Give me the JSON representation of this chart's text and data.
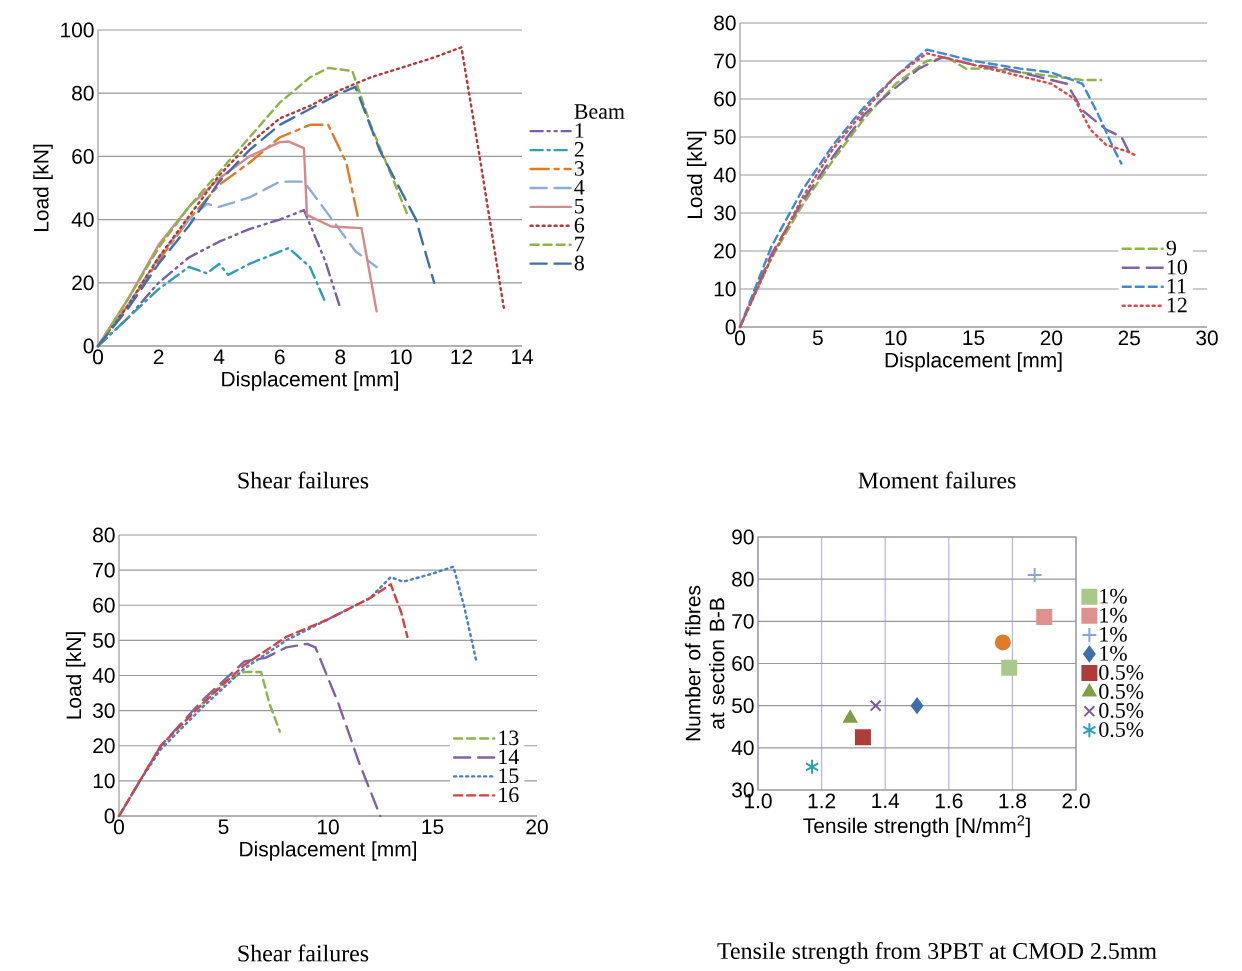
{
  "chart_data": [
    {
      "type": "line",
      "title": "Shear failures",
      "xlabel": "Displacement [mm]",
      "ylabel": "Load [kN]",
      "xlim": [
        0,
        14
      ],
      "ylim": [
        0,
        100
      ],
      "xticks": [
        0,
        2,
        4,
        6,
        8,
        10,
        12,
        14
      ],
      "yticks": [
        0,
        20,
        40,
        60,
        80,
        100
      ],
      "grid": "y",
      "legend": "right",
      "legend_title": "Beam",
      "series": [
        {
          "name": "1",
          "color": "#7b5ea7",
          "line_style": "dash-dot-dot",
          "x": [
            0,
            1,
            2,
            3,
            4,
            5,
            6,
            6.8,
            7.5,
            8
          ],
          "values": [
            0,
            9,
            20,
            28,
            33,
            37,
            40,
            43,
            27,
            12
          ]
        },
        {
          "name": "2",
          "color": "#2e9fb4",
          "line_style": "dash-dot",
          "x": [
            0,
            1,
            2,
            3,
            3.6,
            4,
            4.3,
            5,
            6.3,
            7,
            7.5
          ],
          "values": [
            0,
            9,
            18,
            25,
            23,
            26,
            22.5,
            26,
            31,
            25,
            14
          ]
        },
        {
          "name": "3",
          "color": "#e07b2a",
          "line_style": "long-dash-dot",
          "x": [
            0,
            1,
            2,
            3,
            4,
            5,
            6,
            7,
            7.6,
            8.2,
            8.6
          ],
          "values": [
            0,
            13,
            27,
            40,
            51,
            58,
            66,
            70,
            70,
            58,
            40
          ]
        },
        {
          "name": "4",
          "color": "#8eaad6",
          "line_style": "long-dash",
          "x": [
            0,
            1,
            2,
            3,
            3.6,
            4,
            5,
            6,
            6.8,
            7.5,
            8.5,
            9.2
          ],
          "values": [
            0,
            13,
            28,
            40,
            45,
            44,
            47,
            52,
            52,
            43,
            30,
            25
          ]
        },
        {
          "name": "5",
          "color": "#d48a8a",
          "line_style": "solid",
          "x": [
            0,
            1,
            2,
            3,
            4,
            5,
            6,
            6.3,
            6.8,
            6.9,
            7.7,
            8.7,
            9.2
          ],
          "values": [
            0,
            15,
            32,
            44,
            53,
            60,
            64.5,
            64.7,
            62.6,
            41.5,
            37.8,
            37.3,
            11
          ]
        },
        {
          "name": "6",
          "color": "#b8383b",
          "line_style": "dotted",
          "x": [
            0,
            1,
            2,
            3,
            4,
            5,
            6,
            7,
            8,
            9,
            10,
            11,
            12,
            12.6,
            13.4
          ],
          "values": [
            0,
            13,
            28,
            41,
            54,
            64,
            72,
            76,
            81,
            85,
            88,
            91,
            94.5,
            60,
            12
          ]
        },
        {
          "name": "7",
          "color": "#8db447",
          "line_style": "dashed",
          "x": [
            0,
            1,
            2,
            3,
            4,
            5,
            6,
            7,
            7.6,
            8.4,
            9,
            10.2
          ],
          "values": [
            0,
            15,
            31,
            44,
            55,
            66,
            77,
            85,
            88,
            87,
            70,
            42
          ]
        },
        {
          "name": "8",
          "color": "#3f6fa8",
          "line_style": "long-dash",
          "x": [
            0,
            1,
            2,
            3,
            4,
            5,
            6,
            7,
            8,
            8.5,
            9.3,
            10.5,
            11.1
          ],
          "values": [
            0,
            12,
            26,
            38,
            52,
            62,
            70,
            75,
            80,
            82,
            62,
            40,
            20
          ]
        }
      ]
    },
    {
      "type": "line",
      "title": "Moment failures",
      "xlabel": "Displacement [mm]",
      "ylabel": "Load [kN]",
      "xlim": [
        0,
        30
      ],
      "ylim": [
        0,
        80
      ],
      "xticks": [
        0,
        5,
        10,
        15,
        20,
        25,
        30
      ],
      "yticks": [
        0,
        10,
        20,
        30,
        40,
        50,
        60,
        70,
        80
      ],
      "grid": "y",
      "legend": "bottom right",
      "series": [
        {
          "name": "9",
          "color": "#8db447",
          "line_style": "dashed",
          "x": [
            0,
            2,
            4,
            6,
            8,
            10,
            12,
            13.3,
            14.5,
            16,
            18,
            20,
            22,
            23.2
          ],
          "values": [
            0,
            18,
            32,
            44,
            55,
            64,
            70,
            71,
            68,
            68,
            67,
            66,
            65,
            65
          ]
        },
        {
          "name": "10",
          "color": "#8064a2",
          "line_style": "long-dash",
          "x": [
            0,
            2,
            4,
            6,
            8,
            10,
            11.5,
            13,
            15,
            17,
            19,
            21,
            22,
            23.5,
            24.5,
            25
          ],
          "values": [
            0,
            19,
            33,
            45,
            56,
            63,
            68,
            71,
            69,
            68,
            66,
            64,
            57,
            52,
            50,
            46
          ]
        },
        {
          "name": "11",
          "color": "#3d8ad6",
          "line_style": "dashed",
          "x": [
            0,
            2,
            4,
            6,
            8,
            10,
            12,
            13,
            15,
            18,
            20,
            22,
            23,
            24,
            24.5
          ],
          "values": [
            0,
            21,
            36,
            48,
            58,
            66,
            73,
            72,
            70,
            68,
            67,
            64,
            56,
            47,
            43
          ]
        },
        {
          "name": "12",
          "color": "#e04848",
          "line_style": "dotted",
          "x": [
            0,
            2,
            4,
            6,
            8,
            10,
            12,
            14,
            16,
            18,
            20,
            21.5,
            22.5,
            23.5,
            25,
            25.5
          ],
          "values": [
            0,
            18,
            34,
            47,
            57,
            66,
            72,
            70,
            68,
            66,
            64,
            60,
            52,
            48,
            46,
            45
          ]
        }
      ]
    },
    {
      "type": "line",
      "title": "Shear failures",
      "xlabel": "Displacement [mm]",
      "ylabel": "Load [kN]",
      "xlim": [
        0,
        20
      ],
      "ylim": [
        0,
        80
      ],
      "xticks": [
        0,
        5,
        10,
        15,
        20
      ],
      "yticks": [
        0,
        10,
        20,
        30,
        40,
        50,
        60,
        70,
        80
      ],
      "grid": "y",
      "legend": "bottom right",
      "series": [
        {
          "name": "13",
          "color": "#8db447",
          "line_style": "dashed",
          "x": [
            4,
            5,
            6,
            6.8,
            7.2,
            7.7
          ],
          "values": [
            32,
            38,
            41,
            41,
            32,
            24
          ]
        },
        {
          "name": "14",
          "color": "#8064a2",
          "line_style": "long-dash",
          "x": [
            0,
            2,
            4,
            6,
            7,
            8,
            9,
            9.4,
            10.5,
            11.5,
            12.5
          ],
          "values": [
            0,
            20,
            33,
            44,
            45,
            48,
            49,
            48,
            32,
            15,
            0
          ]
        },
        {
          "name": "15",
          "color": "#4a7fc1",
          "line_style": "dotted",
          "x": [
            0,
            1,
            2,
            4,
            6,
            8,
            10,
            12,
            13,
            13.6,
            15,
            16,
            16.5,
            17.1
          ],
          "values": [
            0,
            10,
            19,
            31,
            42,
            50,
            56,
            62,
            68,
            66.7,
            69,
            71,
            60,
            44
          ]
        },
        {
          "name": "16",
          "color": "#d84040",
          "line_style": "dashed",
          "x": [
            0,
            1,
            2,
            4,
            6,
            8,
            10,
            12,
            13,
            13.5,
            13.8
          ],
          "values": [
            0,
            10,
            20,
            32,
            43,
            51,
            56,
            62,
            66,
            58,
            51
          ]
        }
      ]
    },
    {
      "type": "scatter",
      "title": "Tensile strength from 3PBT at CMOD 2.5mm",
      "xlabel": "Tensile strength  [N/mm$^{2}$]",
      "ylabel": "Number of fibres at section B-B",
      "xlim": [
        1.0,
        2.0
      ],
      "ylim": [
        30,
        90
      ],
      "xticks": [
        {
          "value": 1.0,
          "label": "1.0"
        },
        {
          "value": 1.2,
          "label": "1.2"
        },
        {
          "value": 1.4,
          "label": "1.4"
        },
        {
          "value": 1.6,
          "label": "1.6"
        },
        {
          "value": 1.8,
          "label": "1.8"
        },
        {
          "value": 2.0,
          "label": "2.0"
        }
      ],
      "yticks": [
        30,
        40,
        50,
        60,
        70,
        80,
        90
      ],
      "grid": true,
      "legend": "right",
      "series": [
        {
          "name": "1%",
          "color": "#a8c98a",
          "marker": "square",
          "x": [
            1.79
          ],
          "values": [
            59
          ]
        },
        {
          "name": "1%",
          "color": "#e0908f",
          "marker": "square",
          "x": [
            1.9
          ],
          "values": [
            71
          ]
        },
        {
          "name": "1%",
          "color": "#8aa6d6",
          "marker": "plus",
          "x": [
            1.87
          ],
          "values": [
            81
          ]
        },
        {
          "name": "1%",
          "color": "#3f6fa8",
          "marker": "diamond",
          "x": [
            1.5
          ],
          "values": [
            50
          ]
        },
        {
          "name": "0.5%",
          "color": "#b03c3a",
          "marker": "square",
          "x": [
            1.33
          ],
          "values": [
            42.5
          ]
        },
        {
          "name": "0.5%",
          "color": "#7f9f45",
          "marker": "triangle",
          "x": [
            1.29
          ],
          "values": [
            47
          ]
        },
        {
          "name": "0.5%",
          "color": "#7a5a9e",
          "marker": "cross",
          "x": [
            1.37
          ],
          "values": [
            50
          ]
        },
        {
          "name": "0.5%",
          "color": "#2e9fb4",
          "x": [
            1.17
          ],
          "values": [
            35.5
          ]
        },
        {
          "color": "#e07b2a",
          "marker": "circle",
          "x": [
            1.77
          ],
          "values": [
            65
          ]
        }
      ]
    }
  ]
}
